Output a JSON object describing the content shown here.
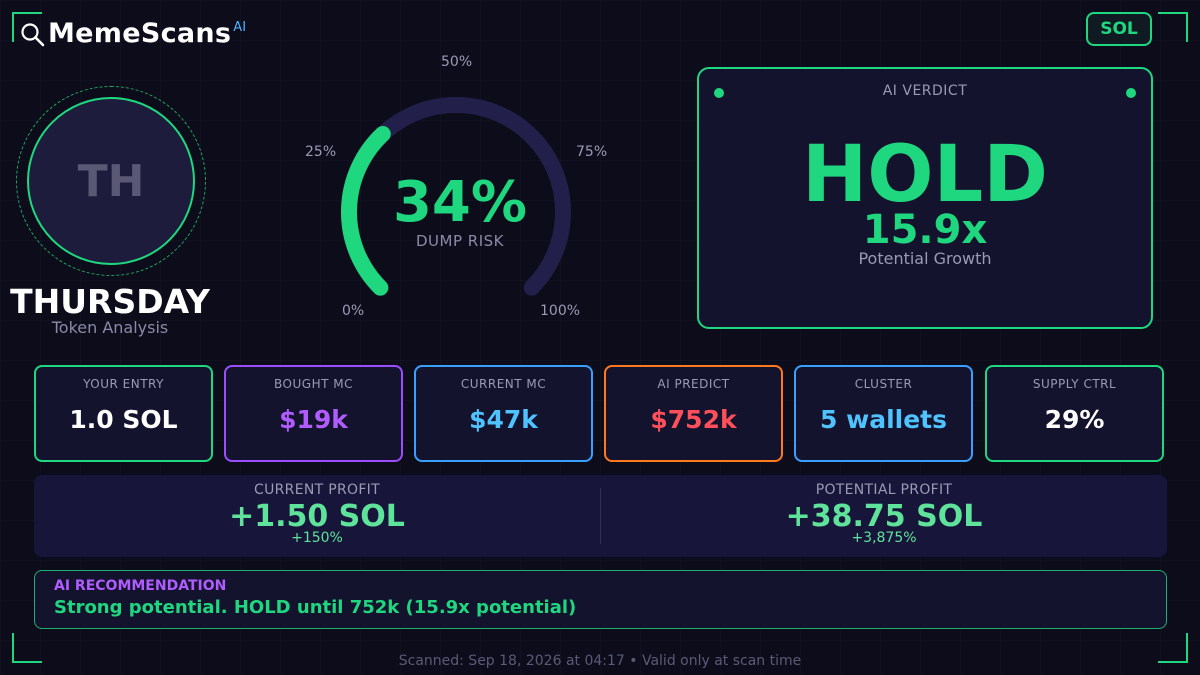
{
  "brand": {
    "name": "MemeScans",
    "ai_tag": "AI",
    "chain": "SOL"
  },
  "token": {
    "initials": "TH",
    "name": "THURSDAY",
    "subtitle": "Token Analysis"
  },
  "gauge": {
    "value_fraction": 0.34,
    "value_label": "34%",
    "label": "DUMP RISK",
    "ticks": {
      "t0": "0%",
      "t25": "25%",
      "t50": "50%",
      "t75": "75%",
      "t100": "100%"
    }
  },
  "verdict": {
    "title": "AI VERDICT",
    "word": "HOLD",
    "multiplier": "15.9x",
    "subtitle": "Potential Growth"
  },
  "stats": [
    {
      "label": "YOUR ENTRY",
      "value": "1.0 SOL",
      "border": "#1fd77f",
      "color": "#ffffff"
    },
    {
      "label": "BOUGHT MC",
      "value": "$19k",
      "border": "#9b4dff",
      "color": "#b05cff"
    },
    {
      "label": "CURRENT MC",
      "value": "$47k",
      "border": "#3aa0ff",
      "color": "#4fc3ff"
    },
    {
      "label": "AI PREDICT",
      "value": "$752k",
      "border": "#ff7a1f",
      "color": "#ff4f5a"
    },
    {
      "label": "CLUSTER",
      "value": "5 wallets",
      "border": "#3aa0ff",
      "color": "#4fc3ff"
    },
    {
      "label": "SUPPLY CTRL",
      "value": "29%",
      "border": "#1fd77f",
      "color": "#ffffff"
    }
  ],
  "profit": {
    "current": {
      "label": "CURRENT PROFIT",
      "value": "+1.50 SOL",
      "pct": "+150%"
    },
    "potential": {
      "label": "POTENTIAL PROFIT",
      "value": "+38.75 SOL",
      "pct": "+3,875%"
    }
  },
  "recommendation": {
    "title": "AI RECOMMENDATION",
    "text": "Strong potential. HOLD until 752k (15.9x potential)"
  },
  "footer": "Scanned: Sep 18, 2026 at 04:17  •  Valid only at scan time"
}
